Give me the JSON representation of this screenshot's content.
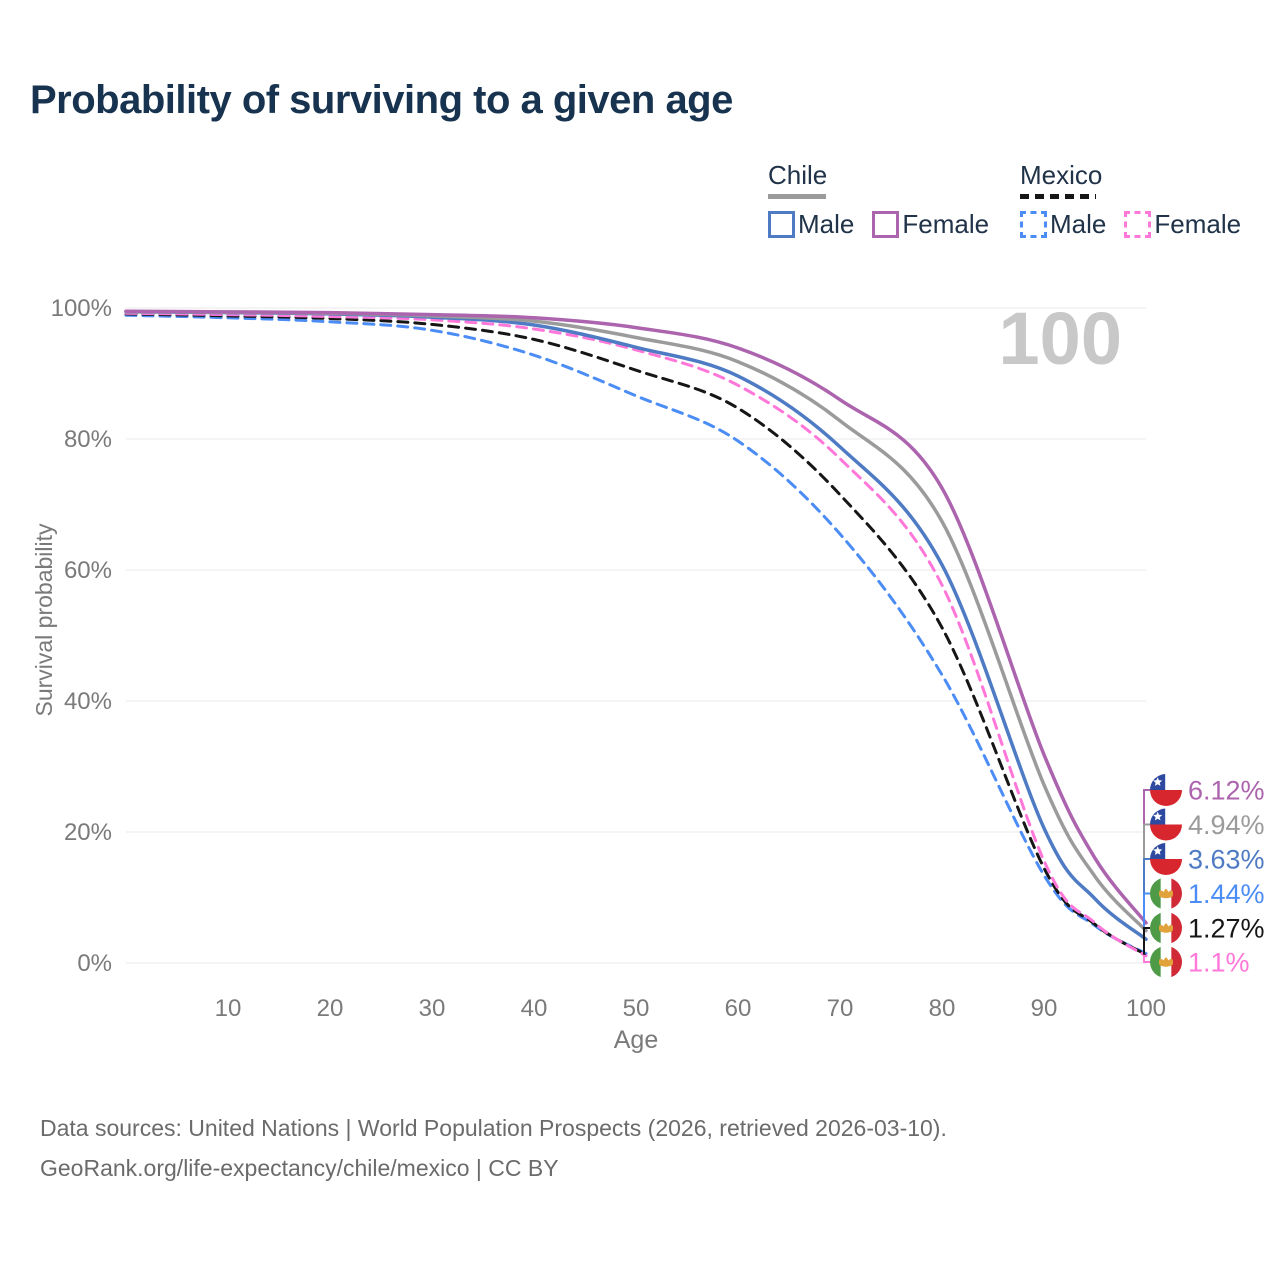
{
  "title": "Probability of surviving to a given age",
  "watermark": "100",
  "legend": {
    "groups": [
      {
        "country": "Chile",
        "line_style": "solid",
        "underline_color": "#9b9b9b",
        "items": [
          {
            "label": "Male",
            "color": "#4e7bc4"
          },
          {
            "label": "Female",
            "color": "#ab64ad"
          }
        ]
      },
      {
        "country": "Mexico",
        "line_style": "dashed",
        "underline_color": "#161616",
        "items": [
          {
            "label": "Male",
            "color": "#4b8cf5"
          },
          {
            "label": "Female",
            "color": "#ff77d9"
          }
        ]
      }
    ]
  },
  "chart_data": {
    "type": "line",
    "title": "Probability of surviving to a given age",
    "xlabel": "Age",
    "ylabel": "Survival probability",
    "xlim": [
      0,
      100
    ],
    "ylim": [
      0,
      100
    ],
    "grid": true,
    "legend_position": "top-right",
    "x_ticks": [
      10,
      20,
      30,
      40,
      50,
      60,
      70,
      80,
      90,
      100
    ],
    "y_tick_values": [
      0,
      20,
      40,
      60,
      80,
      100
    ],
    "y_tick_labels": [
      "0%",
      "20%",
      "40%",
      "60%",
      "80%",
      "100%"
    ],
    "ages": [
      0,
      10,
      20,
      30,
      40,
      50,
      60,
      70,
      80,
      90,
      95,
      100
    ],
    "series": [
      {
        "key": "chile-female",
        "name": "Chile Female",
        "country": "chile",
        "sex": "female",
        "style": "solid",
        "color": "#ab64ad",
        "end_label": "6.12%",
        "flag": "chile",
        "values": [
          99.5,
          99.4,
          99.3,
          99.0,
          98.5,
          97.0,
          93.9,
          86.0,
          72.5,
          31.8,
          16.0,
          6.12
        ]
      },
      {
        "key": "chile-both",
        "name": "Chile (both sexes)",
        "country": "chile",
        "sex": "both",
        "style": "solid",
        "color": "#9b9b9b",
        "end_label": "4.94%",
        "flag": "chile",
        "values": [
          99.45,
          99.35,
          99.2,
          98.8,
          98.0,
          95.5,
          91.8,
          82.8,
          67.4,
          27.2,
          13.2,
          4.94
        ]
      },
      {
        "key": "chile-male",
        "name": "Chile Male",
        "country": "chile",
        "sex": "male",
        "style": "solid",
        "color": "#4e7bc4",
        "end_label": "3.63%",
        "flag": "chile",
        "values": [
          99.4,
          99.3,
          99.1,
          98.6,
          97.4,
          94.0,
          89.6,
          78.8,
          60.8,
          20.6,
          9.8,
          3.63
        ]
      },
      {
        "key": "mexico-male",
        "name": "Mexico Male",
        "country": "mexico",
        "sex": "male",
        "style": "dashed",
        "color": "#4b8cf5",
        "end_label": "1.44%",
        "flag": "mexico",
        "values": [
          98.9,
          98.5,
          97.9,
          96.6,
          92.8,
          86.6,
          79.7,
          65.5,
          44.0,
          13.4,
          5.7,
          1.44
        ]
      },
      {
        "key": "mexico-both",
        "name": "Mexico (both sexes)",
        "country": "mexico",
        "sex": "both",
        "style": "dashed",
        "color": "#161616",
        "end_label": "1.27%",
        "flag": "mexico",
        "values": [
          99.1,
          98.8,
          98.4,
          97.5,
          95.2,
          90.5,
          84.7,
          71.5,
          51.2,
          14.5,
          5.9,
          1.27
        ]
      },
      {
        "key": "mexico-female",
        "name": "Mexico Female",
        "country": "mexico",
        "sex": "female",
        "style": "dashed",
        "color": "#ff77d9",
        "end_label": "1.1%",
        "flag": "mexico",
        "values": [
          99.2,
          99.0,
          98.7,
          98.2,
          96.8,
          93.6,
          88.2,
          77.0,
          57.7,
          15.6,
          6.1,
          1.1
        ]
      }
    ],
    "flag_colors": {
      "chile_blue": "#2e49a0",
      "chile_red": "#d8262e",
      "chile_white": "#ffffff",
      "mexico_green": "#4e9a47",
      "mexico_white": "#ffffff",
      "mexico_red": "#d02a36",
      "mexico_emblem": "#e2a23b"
    }
  },
  "footer": {
    "line1": "Data sources: United Nations | World Population Prospects (2026, retrieved 2026-03-10).",
    "line2": "GeoRank.org/life-expectancy/chile/mexico | CC BY"
  }
}
